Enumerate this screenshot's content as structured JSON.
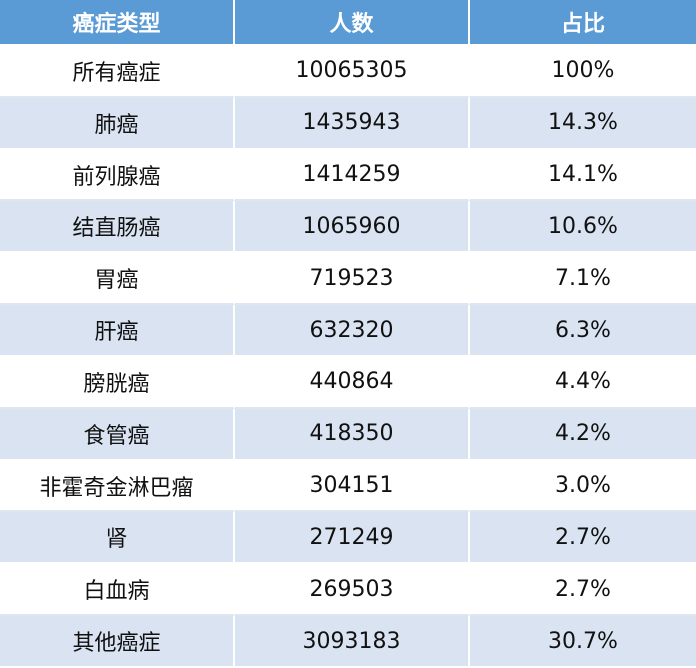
{
  "table": {
    "header": [
      "癌症类型",
      "人数",
      "占比"
    ],
    "rows": [
      [
        "所有癌症",
        "10065305",
        "100%"
      ],
      [
        "肺癌",
        "1435943",
        "14.3%"
      ],
      [
        "前列腺癌",
        "1414259",
        "14.1%"
      ],
      [
        "结直肠癌",
        "1065960",
        "10.6%"
      ],
      [
        "胃癌",
        "719523",
        "7.1%"
      ],
      [
        "肝癌",
        "632320",
        "6.3%"
      ],
      [
        "膀胱癌",
        "440864",
        "4.4%"
      ],
      [
        "食管癌",
        "418350",
        "4.2%"
      ],
      [
        "非霍奇金淋巴瘤",
        "304151",
        "3.0%"
      ],
      [
        "肾",
        "271249",
        "2.7%"
      ],
      [
        "白血病",
        "269503",
        "2.7%"
      ],
      [
        "其他癌症",
        "3093183",
        "30.7%"
      ]
    ]
  }
}
